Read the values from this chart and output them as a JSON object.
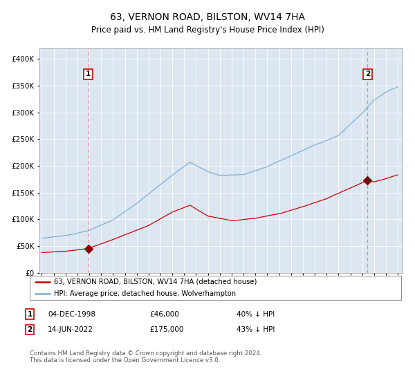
{
  "title": "63, VERNON ROAD, BILSTON, WV14 7HA",
  "subtitle": "Price paid vs. HM Land Registry's House Price Index (HPI)",
  "title_fontsize": 10,
  "subtitle_fontsize": 8.5,
  "plot_bg_color": "#dce6f1",
  "outer_bg_color": "#ffffff",
  "ylim": [
    0,
    420000
  ],
  "yticks": [
    0,
    50000,
    100000,
    150000,
    200000,
    250000,
    300000,
    350000,
    400000
  ],
  "purchase1_year": 1998.92,
  "purchase1_price": 46000,
  "purchase1_date": "04-DEC-1998",
  "purchase1_pct": "40% ↓ HPI",
  "purchase2_year": 2022.45,
  "purchase2_price": 175000,
  "purchase2_date": "14-JUN-2022",
  "purchase2_pct": "43% ↓ HPI",
  "red_line_color": "#cc0000",
  "blue_line_color": "#7bafd4",
  "marker_color": "#880000",
  "dashed_line_color": "#ee8888",
  "grid_color": "#ffffff",
  "legend_label_red": "63, VERNON ROAD, BILSTON, WV14 7HA (detached house)",
  "legend_label_blue": "HPI: Average price, detached house, Wolverhampton",
  "footer_text": "Contains HM Land Registry data © Crown copyright and database right 2024.\nThis data is licensed under the Open Government Licence v3.0.",
  "label_box_edge": "#cc0000",
  "hpi_anchors_x": [
    1995,
    1997,
    1999,
    2001,
    2003,
    2005,
    2007,
    2007.5,
    2009,
    2010,
    2012,
    2014,
    2016,
    2018,
    2020,
    2022,
    2023,
    2024,
    2025
  ],
  "hpi_anchors_y": [
    65000,
    70000,
    80000,
    100000,
    130000,
    165000,
    200000,
    208000,
    190000,
    183000,
    185000,
    200000,
    220000,
    240000,
    258000,
    300000,
    325000,
    340000,
    350000
  ],
  "red_anchors_x": [
    1995,
    1997,
    1998.92,
    2000,
    2002,
    2004,
    2006,
    2007.5,
    2009,
    2011,
    2013,
    2015,
    2017,
    2019,
    2021,
    2022.45,
    2023,
    2024,
    2025
  ],
  "red_anchors_y": [
    38000,
    41000,
    46000,
    55000,
    72000,
    90000,
    115000,
    128000,
    108000,
    100000,
    104000,
    112000,
    125000,
    140000,
    160000,
    175000,
    172000,
    178000,
    185000
  ]
}
